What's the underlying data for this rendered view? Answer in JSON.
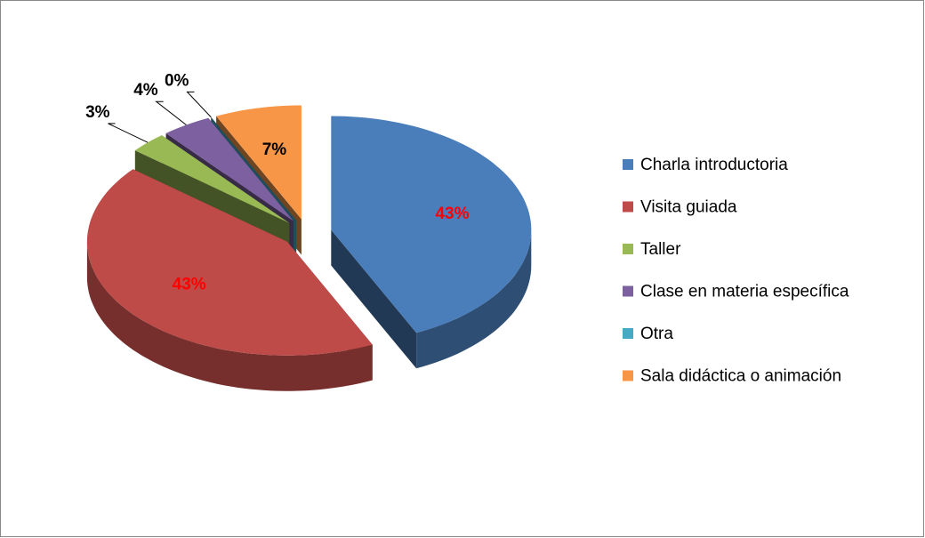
{
  "chart_data": {
    "type": "pie3d",
    "categories": [
      "Charla introductoria",
      "Visita guiada",
      "Taller",
      "Clase en materia específica",
      "Otra",
      "Sala didáctica o animación"
    ],
    "values": [
      43,
      43,
      3,
      4,
      0,
      7
    ],
    "value_labels": [
      "43%",
      "43%",
      "3%",
      "4%",
      "0%",
      "7%"
    ],
    "value_label_colors": [
      "#ff0000",
      "#ff0000",
      "#000000",
      "#000000",
      "#000000",
      "#000000"
    ],
    "colors": [
      "#4a7ebb",
      "#be4b48",
      "#98b954",
      "#7d60a0",
      "#46aac5",
      "#f79646"
    ],
    "legend": "right"
  }
}
